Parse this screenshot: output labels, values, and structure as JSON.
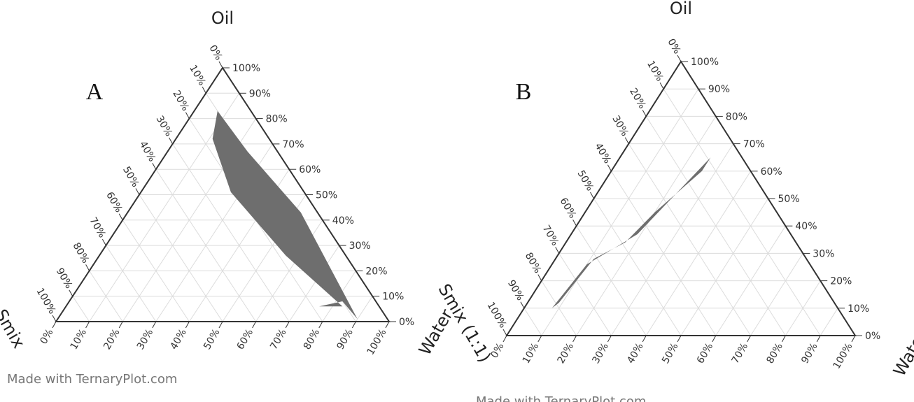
{
  "chart_data": [
    {
      "type": "ternary",
      "panel": "A",
      "axis_labels": {
        "oil": "Oil",
        "water": "Water",
        "smix": "Smix"
      },
      "lim": [
        0,
        100
      ],
      "ticks": [
        {
          "value": 0,
          "label": "0%"
        },
        {
          "value": 10,
          "label": "10%"
        },
        {
          "value": 20,
          "label": "20%"
        },
        {
          "value": 30,
          "label": "30%"
        },
        {
          "value": 40,
          "label": "40%"
        },
        {
          "value": 50,
          "label": "50%"
        },
        {
          "value": 60,
          "label": "60%"
        },
        {
          "value": 70,
          "label": "70%"
        },
        {
          "value": 80,
          "label": "80%"
        },
        {
          "value": 90,
          "label": "90%"
        },
        {
          "value": 100,
          "label": "100%"
        }
      ],
      "grid": true,
      "color": "#6e6e6e",
      "region": {
        "oil": [
          83,
          67,
          43,
          1,
          8,
          6,
          6,
          26,
          51,
          72
        ],
        "water": [
          7,
          24,
          52,
          90,
          82,
          76,
          83,
          56,
          27,
          11
        ],
        "smix": [
          10,
          9,
          5,
          9,
          10,
          18,
          11,
          18,
          22,
          17
        ]
      },
      "watermark": "Made with TernaryPlot.com"
    },
    {
      "type": "ternary",
      "panel": "B",
      "axis_labels": {
        "oil": "Oil",
        "water": "Water",
        "smix": "Smix (1:1)"
      },
      "lim": [
        0,
        100
      ],
      "ticks": [
        {
          "value": 0,
          "label": "0%"
        },
        {
          "value": 10,
          "label": "10%"
        },
        {
          "value": 20,
          "label": "20%"
        },
        {
          "value": 30,
          "label": "30%"
        },
        {
          "value": 40,
          "label": "40%"
        },
        {
          "value": 50,
          "label": "50%"
        },
        {
          "value": 60,
          "label": "60%"
        },
        {
          "value": 70,
          "label": "70%"
        },
        {
          "value": 80,
          "label": "80%"
        },
        {
          "value": 90,
          "label": "90%"
        },
        {
          "value": 100,
          "label": "100%"
        }
      ],
      "grid": true,
      "color": "#6e6e6e",
      "region": {
        "oil": [
          10,
          26,
          32,
          37,
          65,
          60,
          45,
          34,
          28,
          12
        ],
        "water": [
          8,
          10,
          15,
          19,
          26,
          26,
          20,
          17,
          11,
          9
        ],
        "smix": [
          82,
          64,
          53,
          44,
          9,
          14,
          35,
          49,
          61,
          79
        ]
      },
      "watermark": "Made with TernaryPlot.com"
    }
  ]
}
